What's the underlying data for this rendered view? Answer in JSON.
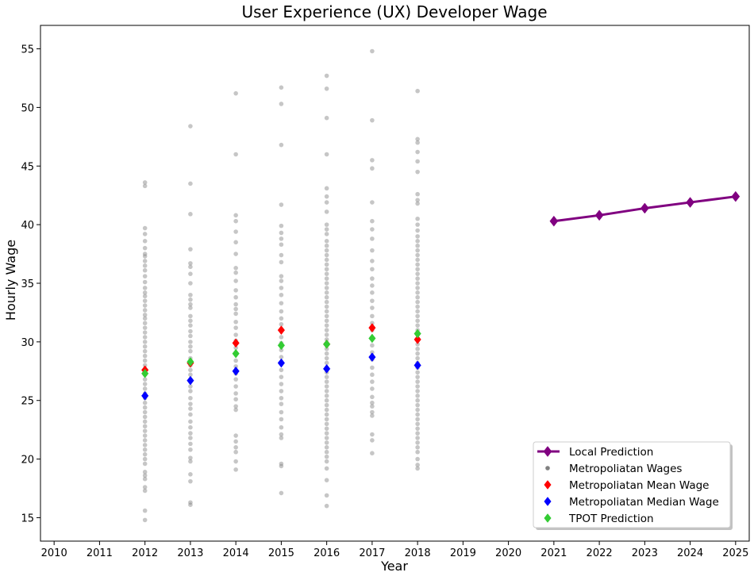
{
  "chart_data": {
    "type": "scatter",
    "title": "User Experience (UX) Developer Wage",
    "xlabel": "Year",
    "ylabel": "Hourly Wage",
    "xlim": [
      2009.7,
      2025.3
    ],
    "ylim": [
      13,
      57
    ],
    "x_ticks": [
      "2010",
      "2011",
      "2012",
      "2013",
      "2014",
      "2015",
      "2016",
      "2017",
      "2018",
      "2019",
      "2020",
      "2021",
      "2022",
      "2023",
      "2024",
      "2025"
    ],
    "y_ticks": [
      "15",
      "20",
      "25",
      "30",
      "35",
      "40",
      "45",
      "50",
      "55"
    ],
    "grid": false,
    "legend_position": "lower-right",
    "colors": {
      "local": "#800080",
      "metro_wages": "#808080",
      "mean": "#ff0000",
      "median": "#0000ff",
      "tpot": "#33cc33"
    },
    "series": [
      {
        "name": "Local Prediction",
        "kind": "line-diamond",
        "color": "#800080",
        "x": [
          2021,
          2022,
          2023,
          2024,
          2025
        ],
        "y": [
          40.3,
          40.8,
          41.4,
          41.9,
          42.4
        ]
      },
      {
        "name": "Metropoliatan Wages",
        "kind": "dots",
        "color": "#808080",
        "groups": [
          {
            "year": 2012,
            "values": [
              43.6,
              43.3,
              39.7,
              39.2,
              38.6,
              38.0,
              37.5,
              37.3,
              36.9,
              36.5,
              36.1,
              35.6,
              35.1,
              34.6,
              34.2,
              33.9,
              33.5,
              33.1,
              32.7,
              32.3,
              32.0,
              31.6,
              31.2,
              30.8,
              30.4,
              30.0,
              29.6,
              29.2,
              28.8,
              28.4,
              28.0,
              27.6,
              27.2,
              26.8,
              26.4,
              26.0,
              25.6,
              25.2,
              24.8,
              24.4,
              24.0,
              23.6,
              23.2,
              22.8,
              22.4,
              22.0,
              21.6,
              21.2,
              20.8,
              20.4,
              20.0,
              19.6,
              18.9,
              18.6,
              18.3,
              17.6,
              17.3,
              15.6,
              14.8
            ]
          },
          {
            "year": 2013,
            "values": [
              48.4,
              43.5,
              40.9,
              37.9,
              36.7,
              36.4,
              35.8,
              35.0,
              34.0,
              33.6,
              33.2,
              32.9,
              32.2,
              31.8,
              31.4,
              30.9,
              30.5,
              30.0,
              29.6,
              29.2,
              28.6,
              28.0,
              27.6,
              27.2,
              26.6,
              26.2,
              25.8,
              25.2,
              24.7,
              24.3,
              23.8,
              23.2,
              22.7,
              22.2,
              21.8,
              21.3,
              20.8,
              20.1,
              19.8,
              18.7,
              18.1,
              16.3,
              16.1
            ]
          },
          {
            "year": 2014,
            "values": [
              51.2,
              46.0,
              40.8,
              40.3,
              39.4,
              38.5,
              37.5,
              36.3,
              35.9,
              35.2,
              34.4,
              33.8,
              33.2,
              32.8,
              32.4,
              31.7,
              31.2,
              30.6,
              30.1,
              29.5,
              29.0,
              28.4,
              27.9,
              27.3,
              26.8,
              26.2,
              25.6,
              25.1,
              24.5,
              24.2,
              22.0,
              21.5,
              21.0,
              20.6,
              19.8,
              19.1
            ]
          },
          {
            "year": 2015,
            "values": [
              51.7,
              50.3,
              46.8,
              41.7,
              39.9,
              39.3,
              38.8,
              38.3,
              37.4,
              36.8,
              35.6,
              35.2,
              34.6,
              34.0,
              33.3,
              32.6,
              32.0,
              31.5,
              31.0,
              30.4,
              29.9,
              29.3,
              28.7,
              28.1,
              27.6,
              27.0,
              26.4,
              25.8,
              25.2,
              24.7,
              24.0,
              23.4,
              22.7,
              22.1,
              21.8,
              19.6,
              19.4,
              17.1
            ]
          },
          {
            "year": 2016,
            "values": [
              52.7,
              51.6,
              49.1,
              46.0,
              43.1,
              42.4,
              41.9,
              41.1,
              40.0,
              39.6,
              39.2,
              38.6,
              38.2,
              37.8,
              37.4,
              37.0,
              36.6,
              36.2,
              35.8,
              35.4,
              35.0,
              34.6,
              34.2,
              33.8,
              33.4,
              33.0,
              32.6,
              32.2,
              31.8,
              31.4,
              31.0,
              30.6,
              30.2,
              29.8,
              29.4,
              29.0,
              28.6,
              28.2,
              27.8,
              27.4,
              27.0,
              26.6,
              26.2,
              25.8,
              25.4,
              25.0,
              24.6,
              24.2,
              23.8,
              23.4,
              23.0,
              22.6,
              22.2,
              21.8,
              21.4,
              21.0,
              20.6,
              20.2,
              19.8,
              19.2,
              18.2,
              16.9,
              16.0
            ]
          },
          {
            "year": 2017,
            "values": [
              54.8,
              48.9,
              45.5,
              44.8,
              41.9,
              40.3,
              39.6,
              38.8,
              37.8,
              36.9,
              36.2,
              35.4,
              34.8,
              34.2,
              33.5,
              32.9,
              32.2,
              31.6,
              31.0,
              30.3,
              29.7,
              29.1,
              28.5,
              27.8,
              27.2,
              26.6,
              26.0,
              25.3,
              24.8,
              24.5,
              24.0,
              23.7,
              22.1,
              21.6,
              20.5
            ]
          },
          {
            "year": 2018,
            "values": [
              51.4,
              47.3,
              47.0,
              46.2,
              45.4,
              44.5,
              42.6,
              42.1,
              41.8,
              40.5,
              40.0,
              39.5,
              39.0,
              38.6,
              38.2,
              37.8,
              37.4,
              37.0,
              36.6,
              36.2,
              35.8,
              35.4,
              35.0,
              34.6,
              34.2,
              33.8,
              33.4,
              33.0,
              32.6,
              32.2,
              31.8,
              31.4,
              31.0,
              30.6,
              30.2,
              29.8,
              29.4,
              29.0,
              28.6,
              28.2,
              27.8,
              27.4,
              27.0,
              26.6,
              26.2,
              25.8,
              25.4,
              25.0,
              24.6,
              24.2,
              23.8,
              23.4,
              23.0,
              22.6,
              22.2,
              21.8,
              21.4,
              21.0,
              20.6,
              20.0,
              19.5,
              19.2
            ]
          }
        ]
      },
      {
        "name": "Metropoliatan Mean Wage",
        "kind": "diamond",
        "color": "#ff0000",
        "x": [
          2012,
          2013,
          2014,
          2015,
          2016,
          2017,
          2018
        ],
        "y": [
          27.6,
          28.2,
          29.9,
          31.0,
          29.8,
          31.2,
          30.2
        ]
      },
      {
        "name": "Metropoliatan Median Wage",
        "kind": "diamond",
        "color": "#0000ff",
        "x": [
          2012,
          2013,
          2014,
          2015,
          2016,
          2017,
          2018
        ],
        "y": [
          25.4,
          26.7,
          27.5,
          28.2,
          27.7,
          28.7,
          28.0
        ]
      },
      {
        "name": "TPOT Prediction",
        "kind": "diamond",
        "color": "#33cc33",
        "x": [
          2012,
          2013,
          2014,
          2015,
          2016,
          2017,
          2018
        ],
        "y": [
          27.3,
          28.3,
          29.0,
          29.7,
          29.8,
          30.3,
          30.7
        ]
      }
    ]
  }
}
